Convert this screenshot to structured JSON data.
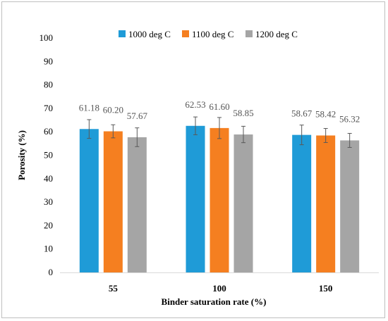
{
  "chart_data": {
    "type": "bar",
    "categories": [
      "55",
      "100",
      "150"
    ],
    "series": [
      {
        "name": "1000 deg C",
        "color": "#1f9bd7",
        "values": [
          61.18,
          62.53,
          58.67
        ],
        "error": [
          4.0,
          3.8,
          4.2
        ]
      },
      {
        "name": "1100 deg C",
        "color": "#f57f20",
        "values": [
          60.2,
          61.6,
          58.42
        ],
        "error": [
          2.8,
          4.5,
          3.0
        ]
      },
      {
        "name": "1200 deg C",
        "color": "#a5a5a5",
        "values": [
          57.67,
          58.85,
          56.32
        ],
        "error": [
          4.0,
          3.5,
          3.0
        ]
      }
    ],
    "data_labels": [
      [
        "61.18",
        "62.53",
        "58.67"
      ],
      [
        "60.20",
        "61.60",
        "58.42"
      ],
      [
        "57.67",
        "58.85",
        "56.32"
      ]
    ],
    "xlabel": "Binder saturation rate (%)",
    "ylabel": "Porosity (%)",
    "ylim": [
      0,
      100
    ],
    "yticks": [
      "0",
      "10",
      "20",
      "30",
      "40",
      "50",
      "60",
      "70",
      "80",
      "90",
      "100"
    ],
    "grid": false,
    "legend_position": "top"
  }
}
